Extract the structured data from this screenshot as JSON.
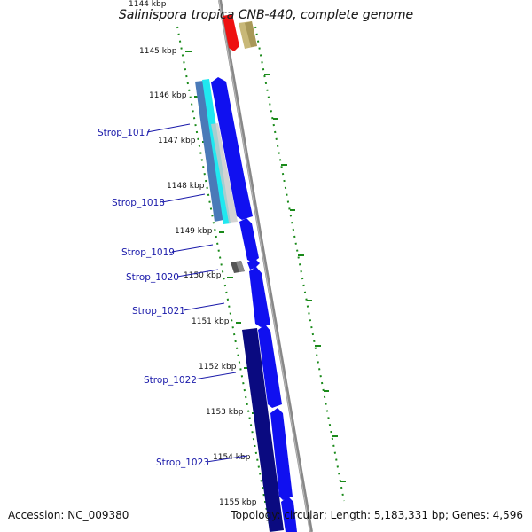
{
  "title": "Salinispora tropica CNB-440, complete genome",
  "accession": "Accession: NC_009380",
  "summary": "Topology: circular; Length: 5,183,331 bp; Genes: 4,596",
  "top_cut_label": "1144 kbp",
  "ticks": [
    "1145 kbp",
    "1146 kbp",
    "1147 kbp",
    "1148 kbp",
    "1149 kbp",
    "1150 kbp",
    "1151 kbp",
    "1152 kbp",
    "1153 kbp",
    "1154 kbp",
    "1155 kbp"
  ],
  "genes": [
    "Strop_1017",
    "Strop_1018",
    "Strop_1019",
    "Strop_1020",
    "Strop_1021",
    "Strop_1022",
    "Strop_1023"
  ],
  "colors": {
    "cds": "#1010f0",
    "cds_dark": "#0a0a80",
    "cyan": "#20e8f0",
    "steel": "#4a7ab8",
    "tick": "#1a8a1a",
    "backbone": "#888888",
    "red": "#ee1111",
    "khaki": "#c8b878",
    "label": "#1a1aaa"
  }
}
